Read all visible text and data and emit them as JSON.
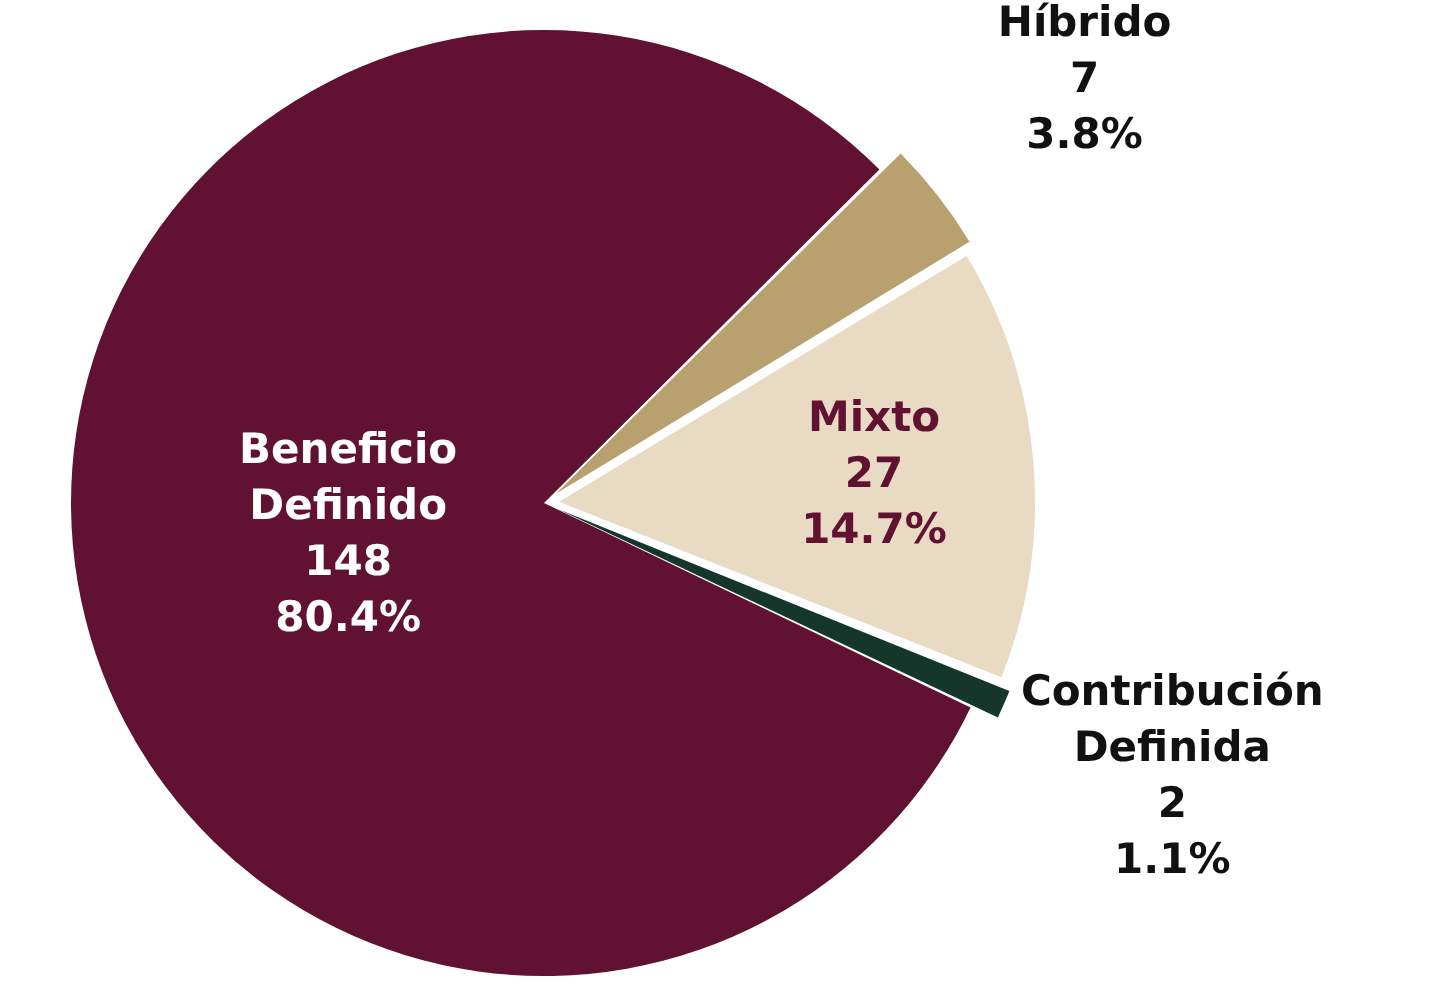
{
  "chart_data": {
    "type": "pie",
    "categories": [
      "Beneficio Definido",
      "Híbrido",
      "Mixto",
      "Contribución Definida"
    ],
    "values": [
      148,
      7,
      27,
      2
    ],
    "colors": [
      "#611232",
      "#b8a06f",
      "#e8dac3",
      "#14362b"
    ],
    "value_labels": [
      "148\n80.4%",
      "7\n3.8%",
      "27\n14.7%",
      "2\n1.1%"
    ],
    "legend": false
  }
}
